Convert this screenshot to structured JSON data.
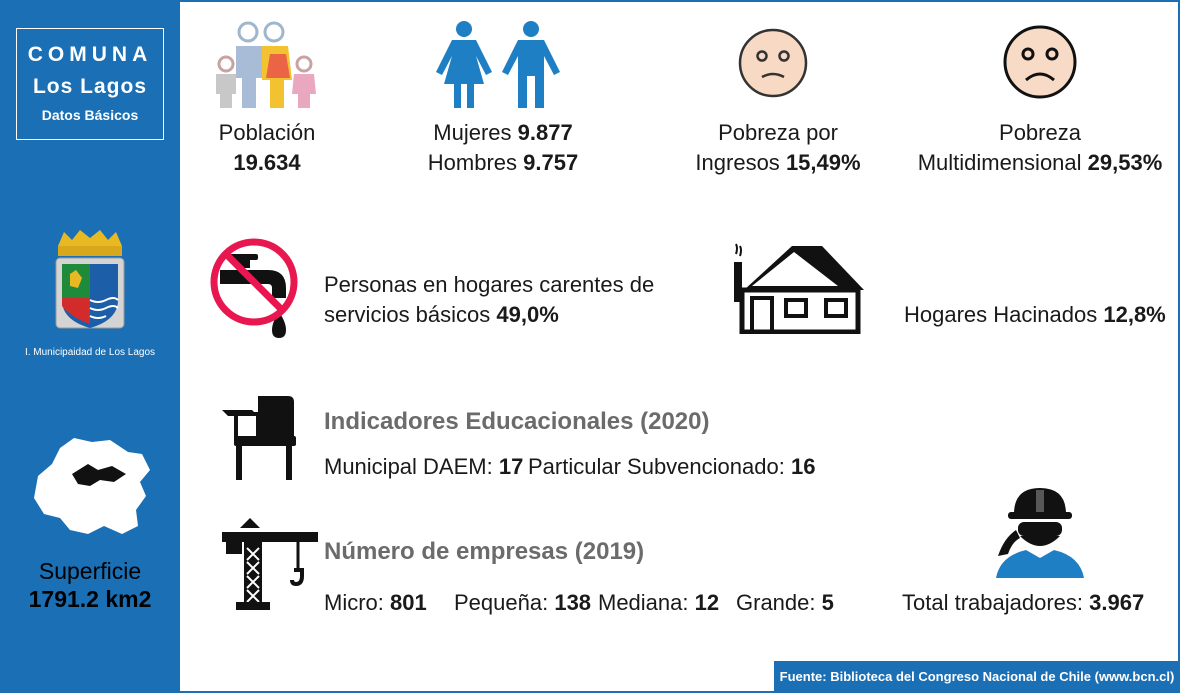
{
  "sidebar": {
    "title_line1": "COMUNA",
    "title_line2": "Los Lagos",
    "title_line3": "Datos Básicos",
    "municipality": "I. Municipaidad de Los Lagos",
    "surface_label": "Superficie",
    "surface_value": "1791.2 km2"
  },
  "stats": {
    "population_label": "Población",
    "population_value": "19.634",
    "women_label": "Mujeres",
    "women_value": "9.877",
    "men_label": "Hombres",
    "men_value": "9.757",
    "income_poverty_line1": "Pobreza por",
    "income_poverty_line2": "Ingresos",
    "income_poverty_value": "15,49%",
    "multi_poverty_line1": "Pobreza",
    "multi_poverty_line2": "Multidimensional",
    "multi_poverty_value": "29,53%",
    "services_line1": "Personas en hogares carentes de",
    "services_line2": "servicios básicos",
    "services_value": "49,0%",
    "overcrowded_label": "Hogares Hacinados",
    "overcrowded_value": "12,8%"
  },
  "education": {
    "title": "Indicadores Educacionales (2020)",
    "municipal_label": "Municipal DAEM:",
    "municipal_value": "17",
    "subsidized_label": "Particular Subvencionado:",
    "subsidized_value": "16"
  },
  "companies": {
    "title": "Número de empresas (2019)",
    "micro_label": "Micro:",
    "micro_value": "801",
    "small_label": "Pequeña:",
    "small_value": "138",
    "medium_label": "Mediana:",
    "medium_value": "12",
    "large_label": "Grande:",
    "large_value": "5",
    "workers_label": "Total trabajadores:",
    "workers_value": "3.967"
  },
  "footer": {
    "source": "Fuente: Biblioteca del Congreso Nacional de Chile (www.bcn.cl)"
  },
  "colors": {
    "brand_blue": "#1a6fb5",
    "title_gray": "#6b6b6b",
    "no_sign_red": "#e8174f"
  },
  "icons": [
    "family-icon",
    "woman-icon",
    "man-icon",
    "sad-face-icon",
    "frown-face-icon",
    "no-water-tap-icon",
    "house-icon",
    "school-desk-icon",
    "crane-icon",
    "worker-icon",
    "crest-icon",
    "map-icon"
  ]
}
